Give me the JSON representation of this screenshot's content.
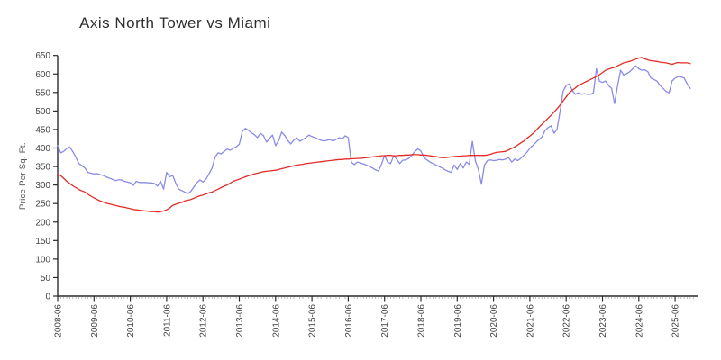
{
  "title": "Axis North Tower vs Miami",
  "colors": {
    "axis": "#2b2b2b",
    "minor_tick": "#aaaaaa",
    "tick_label": "#454545",
    "blue_series": "#8a8ae8",
    "red_series": "#e32a26"
  },
  "chart_data": {
    "type": "line",
    "title": "Axis North Tower vs Miami",
    "xlabel": "",
    "ylabel": "Price Per Sq. Ft.",
    "ylim": [
      0,
      650
    ],
    "y_ticks": [
      0,
      50,
      100,
      150,
      200,
      250,
      300,
      350,
      400,
      450,
      500,
      550,
      600,
      650
    ],
    "x_tick_labels": [
      "2008-06",
      "2009-06",
      "2010-06",
      "2011-06",
      "2012-06",
      "2013-06",
      "2014-06",
      "2015-06",
      "2016-06",
      "2017-06",
      "2018-06",
      "2019-06",
      "2020-06",
      "2021-06",
      "2022-06",
      "2023-06",
      "2024-06",
      "2025-06"
    ],
    "x_start": "2008-06",
    "x_end": "2025-11",
    "x_frequency": "monthly",
    "grid": false,
    "legend_position": "none",
    "series": [
      {
        "name": "Axis North Tower",
        "color": "#8a8ae8",
        "values": [
          407,
          387,
          391,
          399,
          403,
          390,
          375,
          358,
          352,
          346,
          334,
          332,
          330,
          331,
          328,
          326,
          322,
          319,
          316,
          312,
          314,
          314,
          310,
          308,
          306,
          299,
          310,
          307,
          307,
          307,
          306,
          306,
          304,
          297,
          310,
          289,
          334,
          322,
          326,
          305,
          289,
          285,
          281,
          277,
          283,
          295,
          306,
          314,
          308,
          316,
          330,
          346,
          375,
          387,
          384,
          391,
          397,
          394,
          399,
          403,
          410,
          445,
          453,
          448,
          441,
          436,
          428,
          440,
          433,
          416,
          426,
          435,
          406,
          420,
          443,
          434,
          421,
          411,
          421,
          428,
          418,
          423,
          428,
          435,
          431,
          428,
          424,
          421,
          419,
          421,
          423,
          419,
          423,
          428,
          424,
          433,
          428,
          362,
          355,
          362,
          360,
          357,
          354,
          350,
          346,
          341,
          338,
          356,
          380,
          362,
          358,
          379,
          370,
          358,
          367,
          368,
          372,
          380,
          390,
          398,
          392,
          375,
          368,
          362,
          358,
          354,
          350,
          346,
          341,
          337,
          334,
          354,
          342,
          358,
          346,
          362,
          356,
          418,
          366,
          342,
          302,
          354,
          366,
          368,
          366,
          367,
          369,
          368,
          370,
          374,
          362,
          370,
          366,
          372,
          380,
          388,
          399,
          407,
          415,
          423,
          430,
          447,
          455,
          460,
          440,
          451,
          500,
          553,
          569,
          573,
          556,
          545,
          549,
          545,
          547,
          545,
          545,
          549,
          614,
          581,
          577,
          581,
          569,
          561,
          520,
          569,
          610,
          597,
          601,
          606,
          614,
          622,
          614,
          610,
          611,
          606,
          589,
          585,
          581,
          569,
          561,
          553,
          549,
          581,
          589,
          593,
          592,
          589,
          573,
          561
        ]
      },
      {
        "name": "Miami",
        "color": "#e32a26",
        "values": [
          330,
          325,
          318,
          310,
          304,
          298,
          293,
          288,
          284,
          281,
          275,
          270,
          265,
          261,
          257,
          254,
          251,
          249,
          247,
          245,
          243,
          241,
          240,
          238,
          236,
          234,
          233,
          232,
          231,
          230,
          229,
          228,
          228,
          227,
          228,
          230,
          233,
          238,
          245,
          248,
          251,
          253,
          257,
          259,
          261,
          264,
          268,
          271,
          273,
          276,
          279,
          281,
          285,
          289,
          293,
          297,
          300,
          305,
          310,
          313,
          316,
          319,
          322,
          325,
          327,
          330,
          332,
          334,
          336,
          337,
          338,
          339,
          340,
          342,
          344,
          346,
          348,
          350,
          352,
          354,
          355,
          356,
          358,
          359,
          360,
          361,
          362,
          363,
          364,
          365,
          366,
          367,
          368,
          369,
          369,
          370,
          370,
          371,
          371,
          372,
          372,
          373,
          374,
          375,
          376,
          377,
          378,
          379,
          379,
          380,
          380,
          379,
          379,
          380,
          380,
          381,
          381,
          382,
          382,
          382,
          381,
          381,
          380,
          379,
          378,
          377,
          375,
          374,
          374,
          375,
          376,
          377,
          378,
          378,
          379,
          379,
          380,
          380,
          380,
          380,
          380,
          380,
          381,
          383,
          386,
          388,
          389,
          390,
          391,
          395,
          399,
          403,
          408,
          414,
          419,
          426,
          432,
          439,
          447,
          456,
          464,
          472,
          480,
          488,
          497,
          506,
          516,
          527,
          538,
          549,
          556,
          562,
          569,
          573,
          577,
          581,
          585,
          589,
          593,
          598,
          604,
          610,
          613,
          616,
          618,
          622,
          626,
          630,
          632,
          634,
          637,
          640,
          643,
          645,
          641,
          638,
          636,
          635,
          634,
          632,
          631,
          630,
          628,
          626,
          629,
          631,
          630,
          630,
          630,
          628
        ]
      }
    ]
  }
}
